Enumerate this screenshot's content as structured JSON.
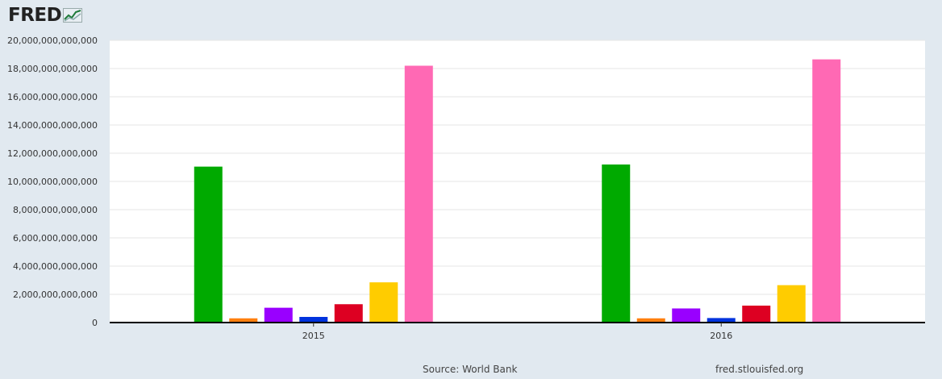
{
  "logo": {
    "text": "FRED"
  },
  "footer": {
    "source": "Source: World Bank",
    "site": "fred.stlouisfed.org"
  },
  "colors": {
    "plot_background": "#ffffff",
    "page_background": "#e1e9f0",
    "grid": "#e6e6e6"
  },
  "chart_data": {
    "type": "bar",
    "title": "",
    "xlabel": "",
    "ylabel": "",
    "categories": [
      "2015",
      "2016"
    ],
    "ylim": [
      0,
      20000000000000
    ],
    "yticks": [
      0,
      2000000000000,
      4000000000000,
      6000000000000,
      8000000000000,
      10000000000000,
      12000000000000,
      14000000000000,
      16000000000000,
      18000000000000,
      20000000000000
    ],
    "ytick_labels": [
      "0",
      "2,000,000,000,000",
      "4,000,000,000,000",
      "6,000,000,000,000",
      "8,000,000,000,000",
      "10,000,000,000,000",
      "12,000,000,000,000",
      "14,000,000,000,000",
      "16,000,000,000,000",
      "18,000,000,000,000",
      "20,000,000,000,000"
    ],
    "grid": true,
    "legend": "none",
    "series": [
      {
        "color": "#00aa00",
        "values": [
          11050000000000,
          11200000000000
        ]
      },
      {
        "color": "#ff7f0e",
        "values": [
          300000000000,
          300000000000
        ]
      },
      {
        "color": "#9900ff",
        "values": [
          1050000000000,
          1000000000000
        ]
      },
      {
        "color": "#0033dd",
        "values": [
          400000000000,
          320000000000
        ]
      },
      {
        "color": "#dd0022",
        "values": [
          1300000000000,
          1200000000000
        ]
      },
      {
        "color": "#ffcc00",
        "values": [
          2850000000000,
          2650000000000
        ]
      },
      {
        "color": "#ff69b4",
        "values": [
          18200000000000,
          18650000000000
        ]
      }
    ]
  }
}
